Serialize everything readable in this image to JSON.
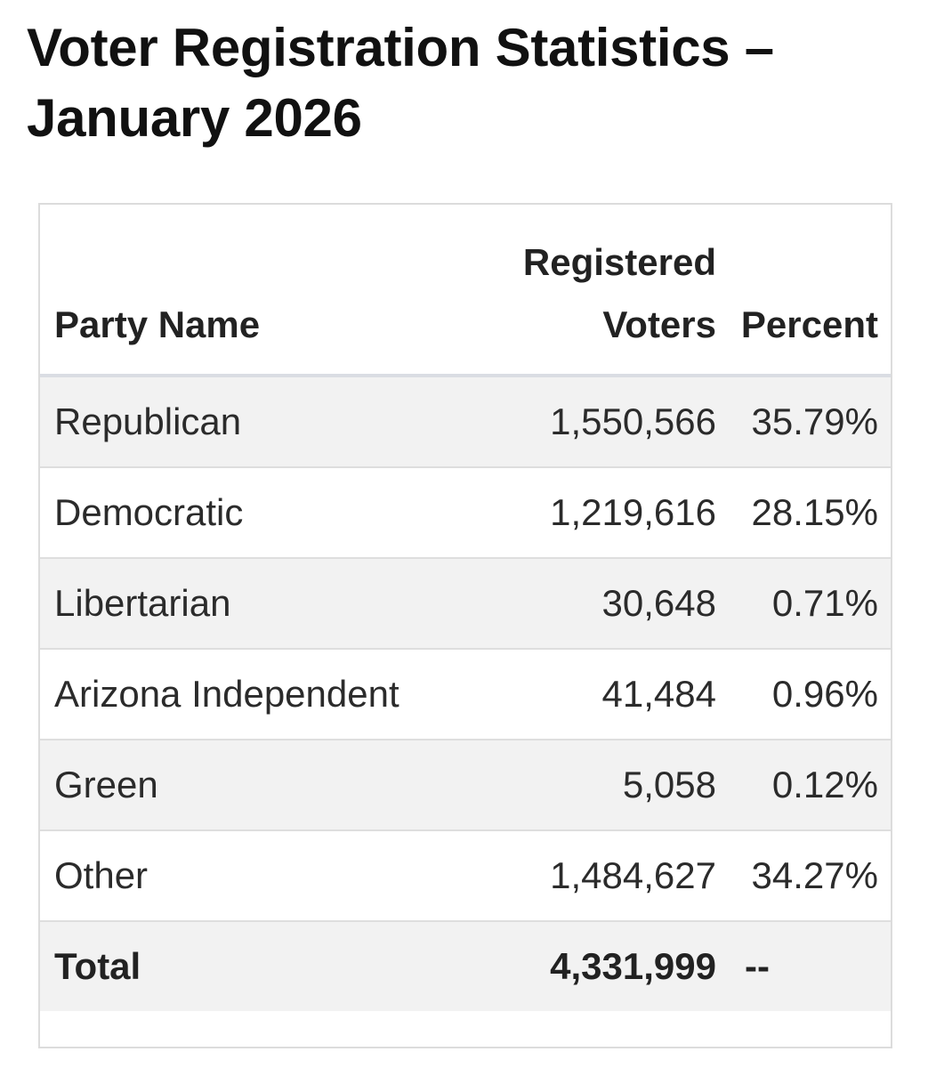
{
  "title": "Voter Registration Statistics – January 2026",
  "table": {
    "headers": {
      "party": "Party Name",
      "voters": "Registered Voters",
      "percent": "Percent"
    },
    "rows": [
      {
        "party": "Republican",
        "voters": "1,550,566",
        "percent": "35.79%"
      },
      {
        "party": "Democratic",
        "voters": "1,219,616",
        "percent": "28.15%"
      },
      {
        "party": "Libertarian",
        "voters": "30,648",
        "percent": "0.71%"
      },
      {
        "party": "Arizona Independent",
        "voters": "41,484",
        "percent": "0.96%"
      },
      {
        "party": "Green",
        "voters": "5,058",
        "percent": "0.12%"
      },
      {
        "party": "Other",
        "voters": "1,484,627",
        "percent": "34.27%"
      }
    ],
    "total": {
      "label": "Total",
      "voters": "4,331,999",
      "percent": "--"
    }
  },
  "colors": {
    "row_shade": "#f2f2f2",
    "border": "#dedede",
    "text": "#2b2b2b"
  }
}
